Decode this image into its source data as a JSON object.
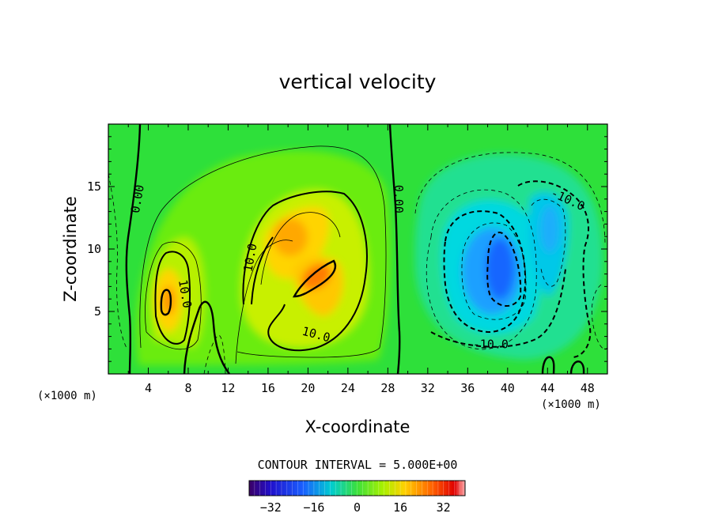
{
  "chart_data": {
    "type": "contour",
    "title": "vertical velocity",
    "xlabel": "X-coordinate",
    "ylabel": "Z-coordinate",
    "x_unit_label": "(×1000 m)",
    "x_unit_label_right": "(×1000 m)",
    "xlim": [
      0,
      50
    ],
    "ylim": [
      0,
      20
    ],
    "xticks": [
      4,
      8,
      12,
      16,
      20,
      24,
      28,
      32,
      36,
      40,
      44,
      48
    ],
    "yticks": [
      5,
      10,
      15
    ],
    "contour_interval_text": "CONTOUR INTERVAL = 5.000E+00",
    "contour_interval": 5,
    "colorbar": {
      "min": -40,
      "max": 40,
      "ticks": [
        -32,
        -16,
        0,
        16,
        32
      ]
    },
    "contour_labels": [
      {
        "text": "0.00",
        "x": 3.0,
        "z": 14.0,
        "angle": -80
      },
      {
        "text": "0.00",
        "x": 29.0,
        "z": 14.0,
        "angle": 90
      },
      {
        "text": "10.0",
        "x": 7.6,
        "z": 6.4,
        "angle": 80
      },
      {
        "text": "10.0",
        "x": 14.3,
        "z": 9.3,
        "angle": -80
      },
      {
        "text": "10.0",
        "x": 20.8,
        "z": 3.1,
        "angle": 15
      },
      {
        "text": "-10.0",
        "x": 38.3,
        "z": 2.3,
        "angle": 0
      },
      {
        "text": "-10.0",
        "x": 46.0,
        "z": 13.9,
        "angle": 25
      }
    ],
    "features": [
      {
        "kind": "updraft",
        "x": 6.0,
        "z": 5.8,
        "peak": 25
      },
      {
        "kind": "updraft",
        "x": 18.3,
        "z": 11.3,
        "peak": 22
      },
      {
        "kind": "updraft",
        "x": 21.8,
        "z": 7.8,
        "peak": 28
      },
      {
        "kind": "downdraft",
        "x": 39.0,
        "z": 8.5,
        "peak": -24
      },
      {
        "kind": "downdraft",
        "x": 44.3,
        "z": 11.3,
        "peak": -17
      }
    ]
  }
}
